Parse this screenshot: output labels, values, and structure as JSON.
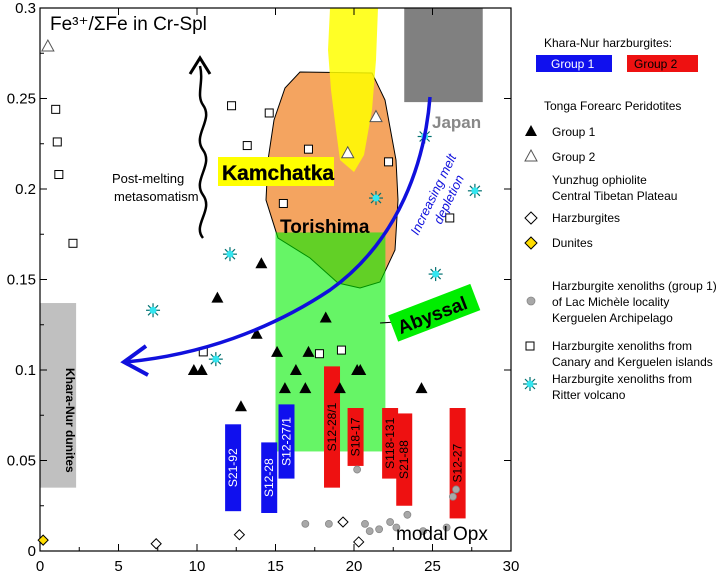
{
  "chart_data": {
    "type": "scatter",
    "title": "Fe³⁺/ΣFe in Cr-Spl",
    "xlabel": "modal Opx",
    "ylabel": "",
    "xlim": [
      0,
      30
    ],
    "ylim": [
      0,
      0.3
    ],
    "x_ticks": [
      0,
      5,
      10,
      15,
      20,
      25,
      30
    ],
    "y_ticks": [
      0,
      0.05,
      0.1,
      0.15,
      0.2,
      0.25,
      0.3
    ],
    "x_tick_labels": [
      "0",
      "5",
      "10",
      "15",
      "20",
      "25",
      "30"
    ],
    "y_tick_labels": [
      "0",
      "0.05",
      "0.1",
      "0.15",
      "0.2",
      "0.25",
      "0.3"
    ],
    "legend": {
      "placement": "right",
      "khara_heading": "Khara-Nur harzburgites:",
      "group1_label": "Group 1",
      "group2_label": "Group 2",
      "tonga_heading": "Tonga Forearc Peridotites",
      "tonga_g1": "Group 1",
      "tonga_g2": "Group 2",
      "yunzhug_line1": "Yunzhug ophiolite",
      "yunzhug_line2": "Central Tibetan Plateau",
      "harz": "Harzburgites",
      "dunites": "Dunites",
      "lac_line1": "Harzburgite xenoliths (group 1)",
      "lac_line2": "of Lac Michèle locality",
      "lac_line3": "Kerguelen Archipelago",
      "canary_line1": "Harzburgite xenoliths from",
      "canary_line2": "Canary and Kerguelen islands",
      "ritter_line1": "Harzburgite xenoliths from",
      "ritter_line2": "Ritter volcano"
    },
    "fields": {
      "japan": {
        "label": "Japan",
        "x": [
          23.2,
          28.2
        ],
        "y": [
          0.248,
          0.3
        ],
        "color": "#808080"
      },
      "abyssal": {
        "label": "Abyssal",
        "x": [
          15.0,
          22.0
        ],
        "y": [
          0.055,
          0.176
        ],
        "color": "#00ee00"
      },
      "khara_dunites": {
        "label": "Khara-Nur dunites",
        "x": [
          0,
          2.3
        ],
        "y": [
          0.035,
          0.137
        ],
        "color": "#c0c0c0"
      },
      "torishima": {
        "label": "Torishima",
        "color": "#f4a460"
      },
      "kamchatka": {
        "label": "Kamchatka",
        "color": "#ffff00"
      }
    },
    "annotations": {
      "post_melting_line1": "Post-melting",
      "post_melting_line2": "metasomatism",
      "increasing_line1": "Increasing melt",
      "increasing_line2": "depletion"
    },
    "khara_group1_bars": [
      {
        "label": "S21-92",
        "x": 12.3,
        "y": [
          0.022,
          0.07
        ]
      },
      {
        "label": "S12-28",
        "x": 14.6,
        "y": [
          0.021,
          0.06
        ]
      },
      {
        "label": "S12-27/1",
        "x": 15.7,
        "y": [
          0.04,
          0.081
        ]
      }
    ],
    "khara_group2_bars": [
      {
        "label": "S12-28/1",
        "x": 18.6,
        "y": [
          0.035,
          0.102
        ]
      },
      {
        "label": "S18-17",
        "x": 20.1,
        "y": [
          0.047,
          0.079
        ]
      },
      {
        "label": "S118-131",
        "x": 22.3,
        "y": [
          0.04,
          0.079
        ]
      },
      {
        "label": "S21-88",
        "x": 23.2,
        "y": [
          0.025,
          0.076
        ]
      },
      {
        "label": "S12-27",
        "x": 26.6,
        "y": [
          0.018,
          0.079
        ]
      }
    ],
    "series": [
      {
        "name": "Tonga Group 1",
        "marker": "filled-triangle",
        "points": [
          [
            9.8,
            0.1
          ],
          [
            10.3,
            0.1
          ],
          [
            11.3,
            0.14
          ],
          [
            12.8,
            0.08
          ],
          [
            13.8,
            0.12
          ],
          [
            14.1,
            0.159
          ],
          [
            15.1,
            0.11
          ],
          [
            15.6,
            0.09
          ],
          [
            16.3,
            0.1
          ],
          [
            16.9,
            0.09
          ],
          [
            17.1,
            0.11
          ],
          [
            18.2,
            0.129
          ],
          [
            19.1,
            0.09
          ],
          [
            20.2,
            0.1
          ],
          [
            20.4,
            0.1
          ],
          [
            24.3,
            0.09
          ]
        ]
      },
      {
        "name": "Tonga Group 2",
        "marker": "open-triangle",
        "points": [
          [
            0.5,
            0.279
          ],
          [
            19.6,
            0.22
          ],
          [
            21.4,
            0.24
          ]
        ]
      },
      {
        "name": "Yunzhug Harzburgites",
        "marker": "open-diamond",
        "points": [
          [
            7.4,
            0.004
          ],
          [
            12.7,
            0.009
          ],
          [
            19.3,
            0.016
          ],
          [
            20.3,
            0.005
          ]
        ]
      },
      {
        "name": "Yunzhug Dunites",
        "marker": "yellow-diamond",
        "points": [
          [
            0.2,
            0.006
          ]
        ]
      },
      {
        "name": "Lac Michèle",
        "marker": "gray-circle",
        "points": [
          [
            16.9,
            0.015
          ],
          [
            18.4,
            0.015
          ],
          [
            20.2,
            0.045
          ],
          [
            20.7,
            0.015
          ],
          [
            21.0,
            0.011
          ],
          [
            21.6,
            0.012
          ],
          [
            22.3,
            0.016
          ],
          [
            22.7,
            0.013
          ],
          [
            23.4,
            0.02
          ],
          [
            24.4,
            0.011
          ],
          [
            25.9,
            0.013
          ],
          [
            26.3,
            0.03
          ],
          [
            26.5,
            0.034
          ]
        ]
      },
      {
        "name": "Canary and Kerguelen",
        "marker": "open-square",
        "points": [
          [
            1.0,
            0.244
          ],
          [
            1.1,
            0.226
          ],
          [
            1.2,
            0.208
          ],
          [
            2.1,
            0.17
          ],
          [
            10.4,
            0.11
          ],
          [
            12.2,
            0.246
          ],
          [
            13.2,
            0.224
          ],
          [
            14.6,
            0.242
          ],
          [
            15.5,
            0.192
          ],
          [
            16.5,
            0.21
          ],
          [
            17.1,
            0.222
          ],
          [
            17.8,
            0.109
          ],
          [
            19.2,
            0.111
          ],
          [
            22.2,
            0.215
          ],
          [
            26.1,
            0.184
          ]
        ]
      },
      {
        "name": "Ritter volcano",
        "marker": "cyan-star",
        "points": [
          [
            7.2,
            0.133
          ],
          [
            11.2,
            0.106
          ],
          [
            12.1,
            0.164
          ],
          [
            21.4,
            0.195
          ],
          [
            24.5,
            0.229
          ],
          [
            25.2,
            0.153
          ],
          [
            27.7,
            0.199
          ]
        ]
      }
    ]
  }
}
